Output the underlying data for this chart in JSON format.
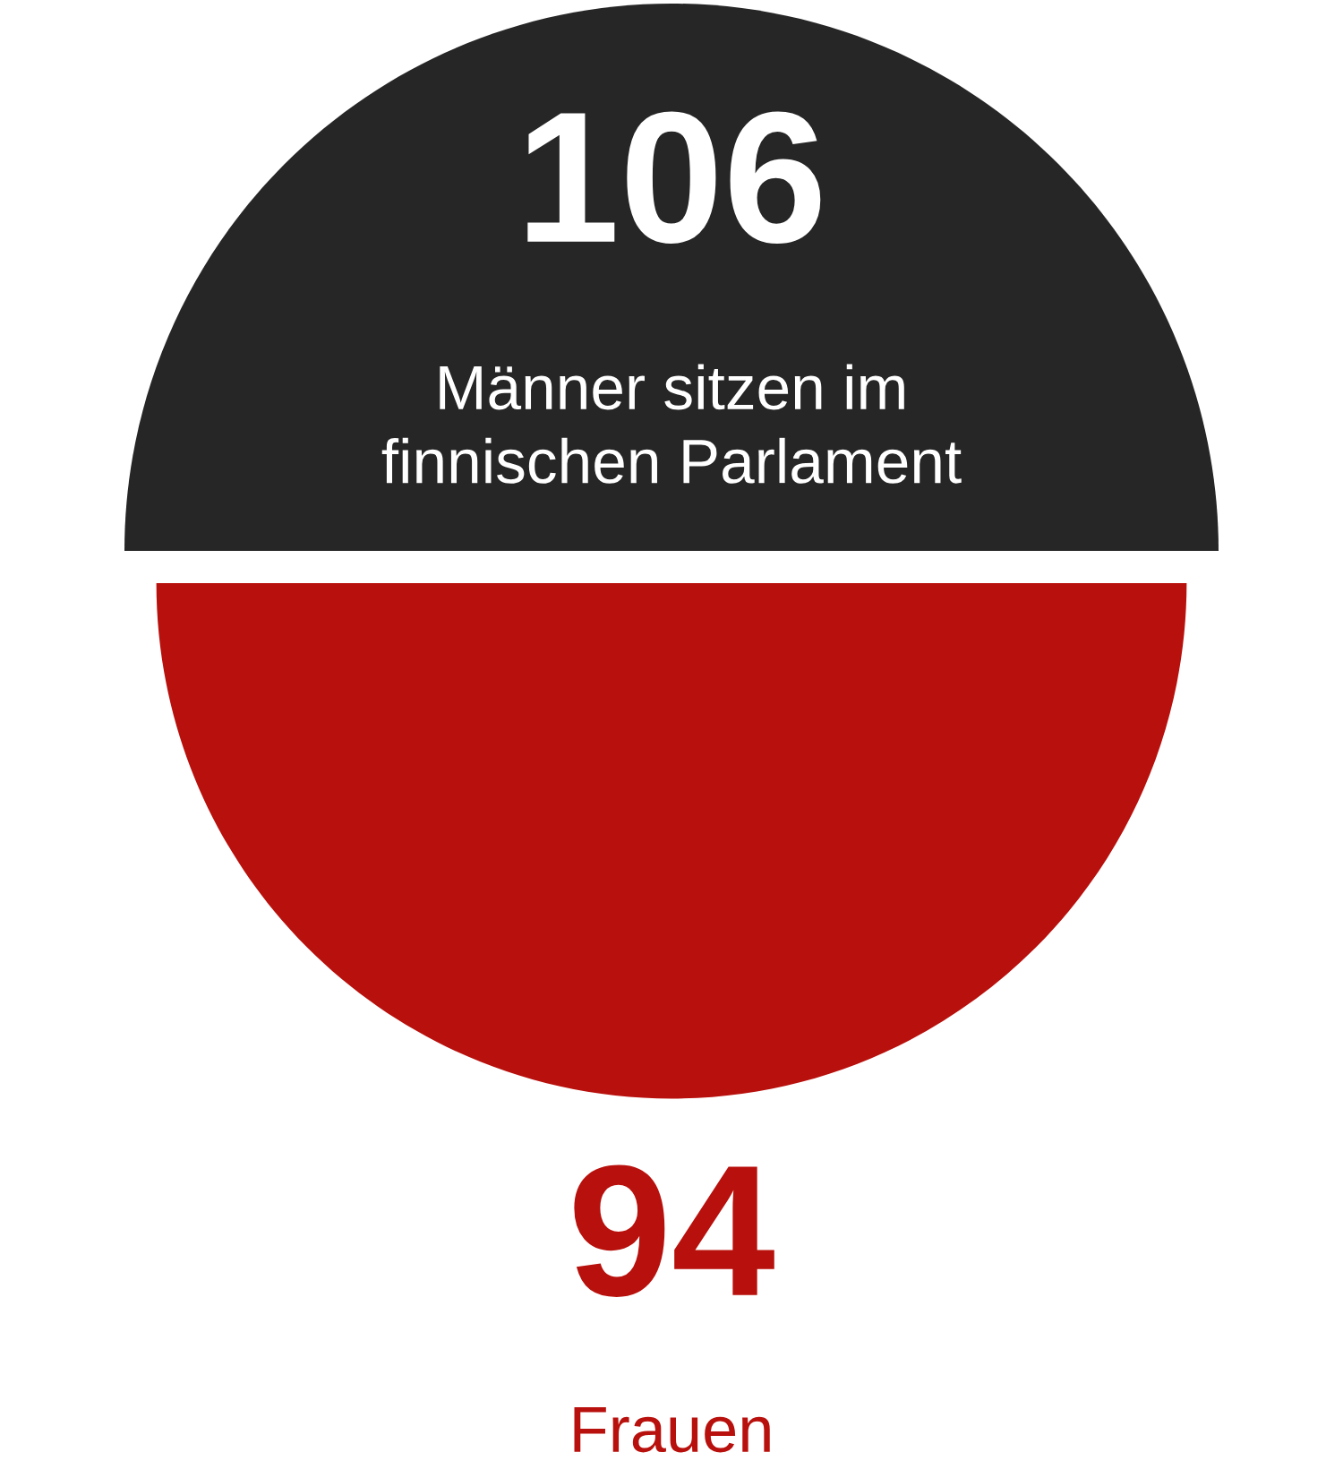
{
  "chart_data": {
    "type": "other",
    "categories": [
      "Männer sitzen im\nfinnischen Parlament",
      "Frauen"
    ],
    "values": [
      106,
      94
    ],
    "colors": [
      "#262626",
      "#b8100c"
    ],
    "data_labels": true
  }
}
